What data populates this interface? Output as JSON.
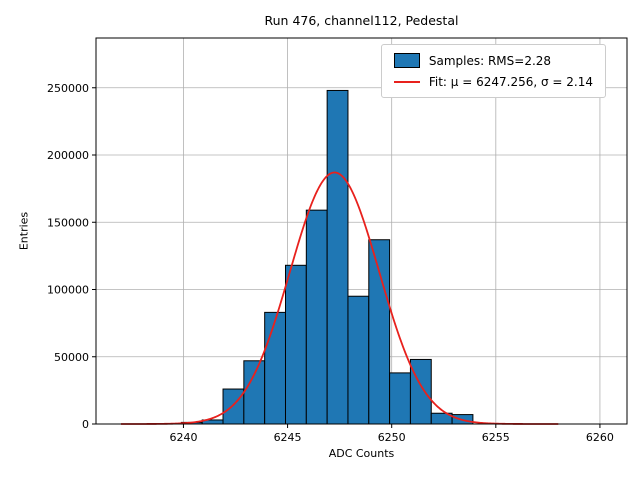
{
  "title": "Run 476, channel112, Pedestal",
  "legend": {
    "samples_label": "Samples: RMS=2.28",
    "fit_label": "Fit: μ = 6247.256, σ = 2.14"
  },
  "colors": {
    "bar_fill": "#1f77b4",
    "bar_edge": "#000000",
    "fit_line": "#e8211d",
    "grid": "#b0b0b0",
    "axis": "#000000",
    "legend_border": "#cccccc"
  },
  "chart_data": {
    "type": "bar",
    "subtype": "histogram-with-gaussian-fit",
    "title": "Run 476, channel112, Pedestal",
    "xlabel": "ADC Counts",
    "ylabel": "Entries",
    "xlim": [
      6235.8,
      6261.3
    ],
    "ylim": [
      0,
      287000
    ],
    "xticks": [
      6240,
      6245,
      6250,
      6255,
      6260
    ],
    "yticks": [
      0,
      50000,
      100000,
      150000,
      200000,
      250000
    ],
    "grid": true,
    "legend_position": "upper right",
    "histogram": {
      "bin_start": 6239.9,
      "bin_width": 1.0,
      "counts": [
        1200,
        3000,
        26000,
        47000,
        83000,
        118000,
        159000,
        248000,
        95000,
        137000,
        38000,
        48000,
        8000,
        7000
      ],
      "rms": 2.28
    },
    "fit": {
      "shape": "gaussian",
      "mu": 6247.256,
      "sigma": 2.14,
      "amplitude": 187000,
      "x_range": [
        6237,
        6258
      ]
    }
  }
}
